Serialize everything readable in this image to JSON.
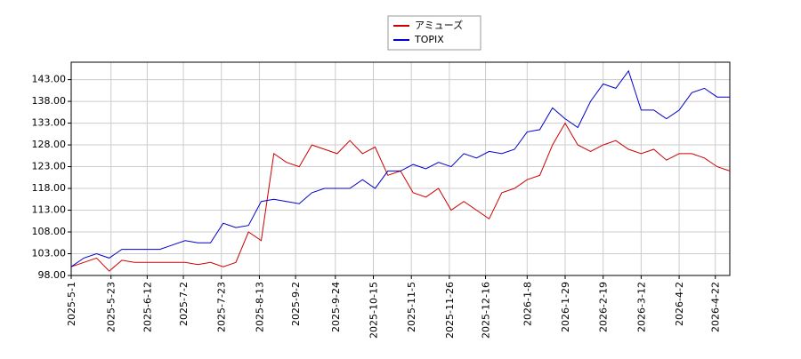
{
  "chart_data": {
    "type": "line",
    "x": [
      "2025-05-01",
      "2025-05-08",
      "2025-05-15",
      "2025-05-22",
      "2025-05-29",
      "2025-06-05",
      "2025-06-12",
      "2025-06-19",
      "2025-06-26",
      "2025-07-03",
      "2025-07-10",
      "2025-07-17",
      "2025-07-24",
      "2025-07-31",
      "2025-08-07",
      "2025-08-14",
      "2025-08-21",
      "2025-08-28",
      "2025-09-04",
      "2025-09-11",
      "2025-09-18",
      "2025-09-25",
      "2025-10-02",
      "2025-10-09",
      "2025-10-16",
      "2025-10-23",
      "2025-10-30",
      "2025-11-06",
      "2025-11-13",
      "2025-11-20",
      "2025-11-27",
      "2025-12-04",
      "2025-12-11",
      "2025-12-18",
      "2025-12-25",
      "2026-01-01",
      "2026-01-08",
      "2026-01-15",
      "2026-01-22",
      "2026-01-29",
      "2026-02-05",
      "2026-02-12",
      "2026-02-19",
      "2026-02-26",
      "2026-03-05",
      "2026-03-12",
      "2026-03-19",
      "2026-03-26",
      "2026-04-02",
      "2026-04-09",
      "2026-04-16",
      "2026-04-23",
      "2026-04-30"
    ],
    "series": [
      {
        "name": "アミューズ",
        "color": "#cc0000",
        "values": [
          100,
          101,
          102,
          99,
          101.5,
          101,
          101,
          101,
          101,
          101,
          100.5,
          101,
          100,
          101,
          108,
          106,
          126,
          124,
          123,
          128,
          127,
          126,
          129,
          126,
          127.5,
          121,
          122,
          117,
          116,
          118,
          113,
          115,
          113,
          111,
          117,
          118,
          120,
          121,
          128,
          133,
          128,
          126.5,
          128,
          129,
          127,
          126,
          127,
          124.5,
          126,
          126,
          125,
          123,
          122
        ]
      },
      {
        "name": "TOPIX",
        "color": "#0000cc",
        "values": [
          100,
          102,
          103,
          102,
          104,
          104,
          104,
          104,
          105,
          106,
          105.5,
          105.5,
          110,
          109,
          109.5,
          115,
          115.5,
          115,
          114.5,
          117,
          118,
          118,
          118,
          120,
          118,
          122,
          122,
          123.5,
          122.5,
          124,
          123,
          126,
          125,
          126.5,
          126,
          127,
          131,
          131.5,
          136.5,
          134,
          132,
          138,
          142,
          141,
          145,
          136,
          136,
          134,
          136,
          140,
          141,
          139,
          139
        ]
      }
    ],
    "xlim": [
      "2025-05-01",
      "2026-04-30"
    ],
    "xticks": [
      {
        "value": "2025-05-01",
        "label": "2025-5-1"
      },
      {
        "value": "2025-05-23",
        "label": "2025-5-23"
      },
      {
        "value": "2025-06-12",
        "label": "2025-6-12"
      },
      {
        "value": "2025-07-02",
        "label": "2025-7-2"
      },
      {
        "value": "2025-07-23",
        "label": "2025-7-23"
      },
      {
        "value": "2025-08-13",
        "label": "2025-8-13"
      },
      {
        "value": "2025-09-02",
        "label": "2025-9-2"
      },
      {
        "value": "2025-09-24",
        "label": "2025-9-24"
      },
      {
        "value": "2025-10-15",
        "label": "2025-10-15"
      },
      {
        "value": "2025-11-05",
        "label": "2025-11-5"
      },
      {
        "value": "2025-11-26",
        "label": "2025-11-26"
      },
      {
        "value": "2025-12-16",
        "label": "2025-12-16"
      },
      {
        "value": "2026-01-08",
        "label": "2026-1-8"
      },
      {
        "value": "2026-01-29",
        "label": "2026-1-29"
      },
      {
        "value": "2026-02-19",
        "label": "2026-2-19"
      },
      {
        "value": "2026-03-12",
        "label": "2026-3-12"
      },
      {
        "value": "2026-04-02",
        "label": "2026-4-2"
      },
      {
        "value": "2026-04-22",
        "label": "2026-4-22"
      }
    ],
    "ylim": [
      98,
      147
    ],
    "yticks": [
      {
        "value": 98,
        "label": "98.00"
      },
      {
        "value": 103,
        "label": "103.00"
      },
      {
        "value": 108,
        "label": "108.00"
      },
      {
        "value": 113,
        "label": "113.00"
      },
      {
        "value": 118,
        "label": "118.00"
      },
      {
        "value": 123,
        "label": "123.00"
      },
      {
        "value": 128,
        "label": "128.00"
      },
      {
        "value": 133,
        "label": "133.00"
      },
      {
        "value": 138,
        "label": "138.00"
      },
      {
        "value": 143,
        "label": "143.00"
      }
    ],
    "grid": true,
    "legend": "top"
  }
}
